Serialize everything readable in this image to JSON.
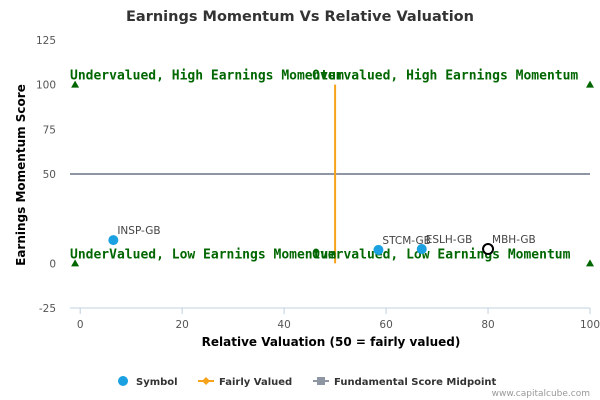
{
  "chart_data": {
    "type": "scatter",
    "title": "Earnings Momentum Vs Relative Valuation",
    "xlabel": "Relative Valuation (50 = fairly valued)",
    "ylabel": "Earnings Momentum Score",
    "xlim": [
      -2,
      100
    ],
    "ylim": [
      -25,
      125
    ],
    "xticks": [
      "0",
      "20",
      "40",
      "60",
      "80",
      "100"
    ],
    "yticks": [
      "-25",
      "0",
      "50",
      "75",
      "100",
      "125"
    ],
    "grid": false,
    "legend_position": "bottom",
    "points": [
      {
        "label": "INSP-GB",
        "x": 6.5,
        "y": 13,
        "style": "filled"
      },
      {
        "label": "STCM-GB",
        "x": 58.5,
        "y": 7.5,
        "style": "filled"
      },
      {
        "label": "ESLH-GB",
        "x": 67,
        "y": 8,
        "style": "filled"
      },
      {
        "label": "MBH-GB",
        "x": 80,
        "y": 8,
        "style": "hollow"
      }
    ],
    "fairly_valued_line": {
      "x": 50,
      "y": [
        0,
        100
      ]
    },
    "midpoint_line": {
      "y": 50,
      "x": [
        -2,
        100
      ]
    },
    "corner_markers": [
      {
        "x": -1,
        "y": 100
      },
      {
        "x": 100,
        "y": 100
      },
      {
        "x": -1,
        "y": 0
      },
      {
        "x": 100,
        "y": 0
      }
    ],
    "quadrant_labels": [
      "Undervalued, High Earnings Momentum",
      "Overvalued, High Earnings Momentum",
      "UnderValued, Low Earnings Momentum",
      "Overvalued, Low Earnings Momentum"
    ],
    "legend": [
      "Symbol",
      "Fairly Valued",
      "Fundamental Score Midpoint"
    ],
    "credit": "www.capitalcube.com",
    "colors": {
      "symbol": "#1ba1e2",
      "fairly_valued": "#f7a21b",
      "midpoint": "#8f96a3",
      "quadrant_text": "#006600",
      "marker": "#006600",
      "hollow_outline": "#000000"
    }
  }
}
